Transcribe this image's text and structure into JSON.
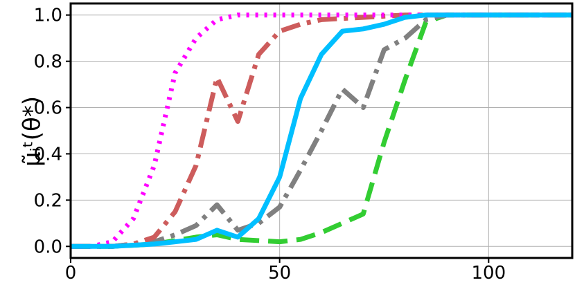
{
  "chart_data": {
    "type": "line",
    "title": "",
    "xlabel": "",
    "ylabel": "μ̃ᵢᵗ(θ*)",
    "xlim": [
      0,
      120
    ],
    "ylim": [
      -0.05,
      1.05
    ],
    "grid": true,
    "xticks": [
      0,
      50,
      100
    ],
    "xtick_labels": [
      "0",
      "50",
      "100"
    ],
    "yticks": [
      0.0,
      0.2,
      0.4,
      0.6,
      0.8,
      1.0
    ],
    "ytick_labels": [
      "0.0",
      "0.2",
      "0.4",
      "0.6",
      "0.8",
      "1.0"
    ],
    "series": [
      {
        "color": "#ff00ff",
        "style": "dotted",
        "x": [
          0,
          5,
          10,
          15,
          20,
          25,
          30,
          35,
          40,
          45,
          50,
          60,
          70,
          80,
          90,
          100,
          110,
          120
        ],
        "y": [
          0.0,
          0.0,
          0.02,
          0.12,
          0.35,
          0.75,
          0.9,
          0.98,
          1.0,
          1.0,
          1.0,
          1.0,
          1.0,
          1.0,
          1.0,
          1.0,
          1.0,
          1.0
        ]
      },
      {
        "color": "#cd5c5c",
        "style": "dashdot",
        "x": [
          0,
          10,
          15,
          20,
          25,
          30,
          35,
          40,
          45,
          50,
          55,
          60,
          70,
          80,
          90,
          100,
          110,
          120
        ],
        "y": [
          0.0,
          0.0,
          0.01,
          0.04,
          0.15,
          0.35,
          0.73,
          0.54,
          0.83,
          0.93,
          0.96,
          0.98,
          0.99,
          1.0,
          1.0,
          1.0,
          1.0,
          1.0
        ]
      },
      {
        "color": "#00bfff",
        "style": "solid",
        "x": [
          0,
          10,
          20,
          25,
          30,
          35,
          40,
          45,
          50,
          55,
          60,
          65,
          70,
          75,
          80,
          85,
          90,
          100,
          110,
          120
        ],
        "y": [
          0.0,
          0.0,
          0.01,
          0.02,
          0.03,
          0.07,
          0.04,
          0.12,
          0.3,
          0.64,
          0.83,
          0.93,
          0.94,
          0.96,
          0.99,
          1.0,
          1.0,
          1.0,
          1.0,
          1.0
        ]
      },
      {
        "color": "#808080",
        "style": "dashdot",
        "x": [
          0,
          10,
          20,
          25,
          30,
          35,
          40,
          45,
          50,
          55,
          60,
          65,
          70,
          75,
          80,
          85,
          90,
          100,
          110,
          120
        ],
        "y": [
          0.0,
          0.0,
          0.02,
          0.05,
          0.09,
          0.18,
          0.07,
          0.1,
          0.17,
          0.33,
          0.5,
          0.68,
          0.6,
          0.85,
          0.9,
          0.98,
          1.0,
          1.0,
          1.0,
          1.0
        ]
      },
      {
        "color": "#32cd32",
        "style": "dashed",
        "x": [
          0,
          10,
          20,
          30,
          35,
          40,
          50,
          55,
          60,
          65,
          70,
          75,
          80,
          85,
          90,
          100,
          110,
          120
        ],
        "y": [
          0.0,
          0.0,
          0.01,
          0.04,
          0.05,
          0.03,
          0.02,
          0.03,
          0.06,
          0.1,
          0.14,
          0.45,
          0.72,
          0.97,
          1.0,
          1.0,
          1.0,
          1.0
        ]
      }
    ]
  }
}
